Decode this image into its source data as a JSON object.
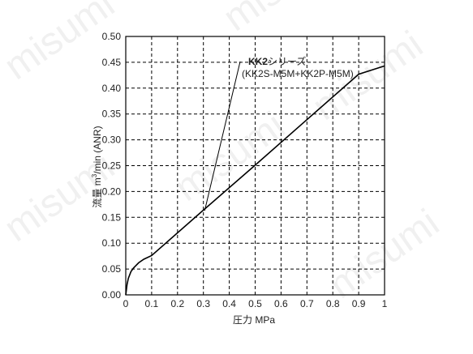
{
  "watermark": "misumi",
  "chart_data": {
    "type": "line",
    "title": "",
    "xlabel": "圧力 MPa",
    "ylabel_parts": [
      "流量 m",
      "3",
      "/min (ANR)"
    ],
    "xlim": [
      0,
      1
    ],
    "ylim": [
      0,
      0.5
    ],
    "xticks": [
      "0",
      "0.1",
      "0.2",
      "0.3",
      "0.4",
      "0.5",
      "0.6",
      "0.7",
      "0.8",
      "0.9",
      "1"
    ],
    "yticks": [
      "0.00",
      "0.05",
      "0.10",
      "0.15",
      "0.20",
      "0.25",
      "0.30",
      "0.35",
      "0.40",
      "0.45",
      "0.50"
    ],
    "grid": true,
    "series": [
      {
        "name": "KK2シリーズ (KK2S-M5M+KK2P-M5M)",
        "x": [
          0,
          0.005,
          0.01,
          0.02,
          0.03,
          0.05,
          0.07,
          0.1,
          0.3,
          0.5,
          0.7,
          0.9,
          1.0
        ],
        "y": [
          0,
          0.02,
          0.032,
          0.045,
          0.052,
          0.062,
          0.069,
          0.076,
          0.164,
          0.251,
          0.339,
          0.427,
          0.443
        ]
      }
    ],
    "annotation": {
      "line1_bold": "KK2",
      "line1_rest": "シリーズ",
      "line2": "(KK2S-M5M+KK2P-M5M)",
      "point": [
        0.305,
        0.163
      ]
    }
  }
}
